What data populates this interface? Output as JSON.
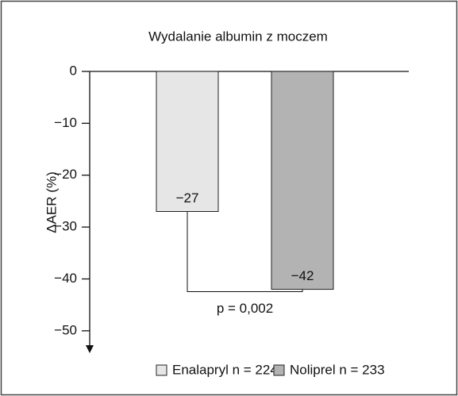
{
  "chart_data": {
    "type": "bar",
    "title": "Wydalanie albumin z moczem",
    "y_label": "ΔAER (%)",
    "categories": [
      "Enalapryl n = 224",
      "Noliprel n = 233"
    ],
    "values": [
      -27,
      -42
    ],
    "value_labels": [
      "−27",
      "−42"
    ],
    "colors": [
      "#e6e6e6",
      "#b3b3b3"
    ],
    "ylim": [
      -54,
      0
    ],
    "yticks": [
      0,
      {
        "value": -10,
        "label": "−10"
      },
      {
        "value": -20,
        "label": "−20"
      },
      {
        "value": -30,
        "label": "−30"
      },
      {
        "value": -40,
        "label": "−40"
      },
      {
        "value": -50,
        "label": "−50"
      }
    ],
    "annotation": "p = 0,002"
  }
}
